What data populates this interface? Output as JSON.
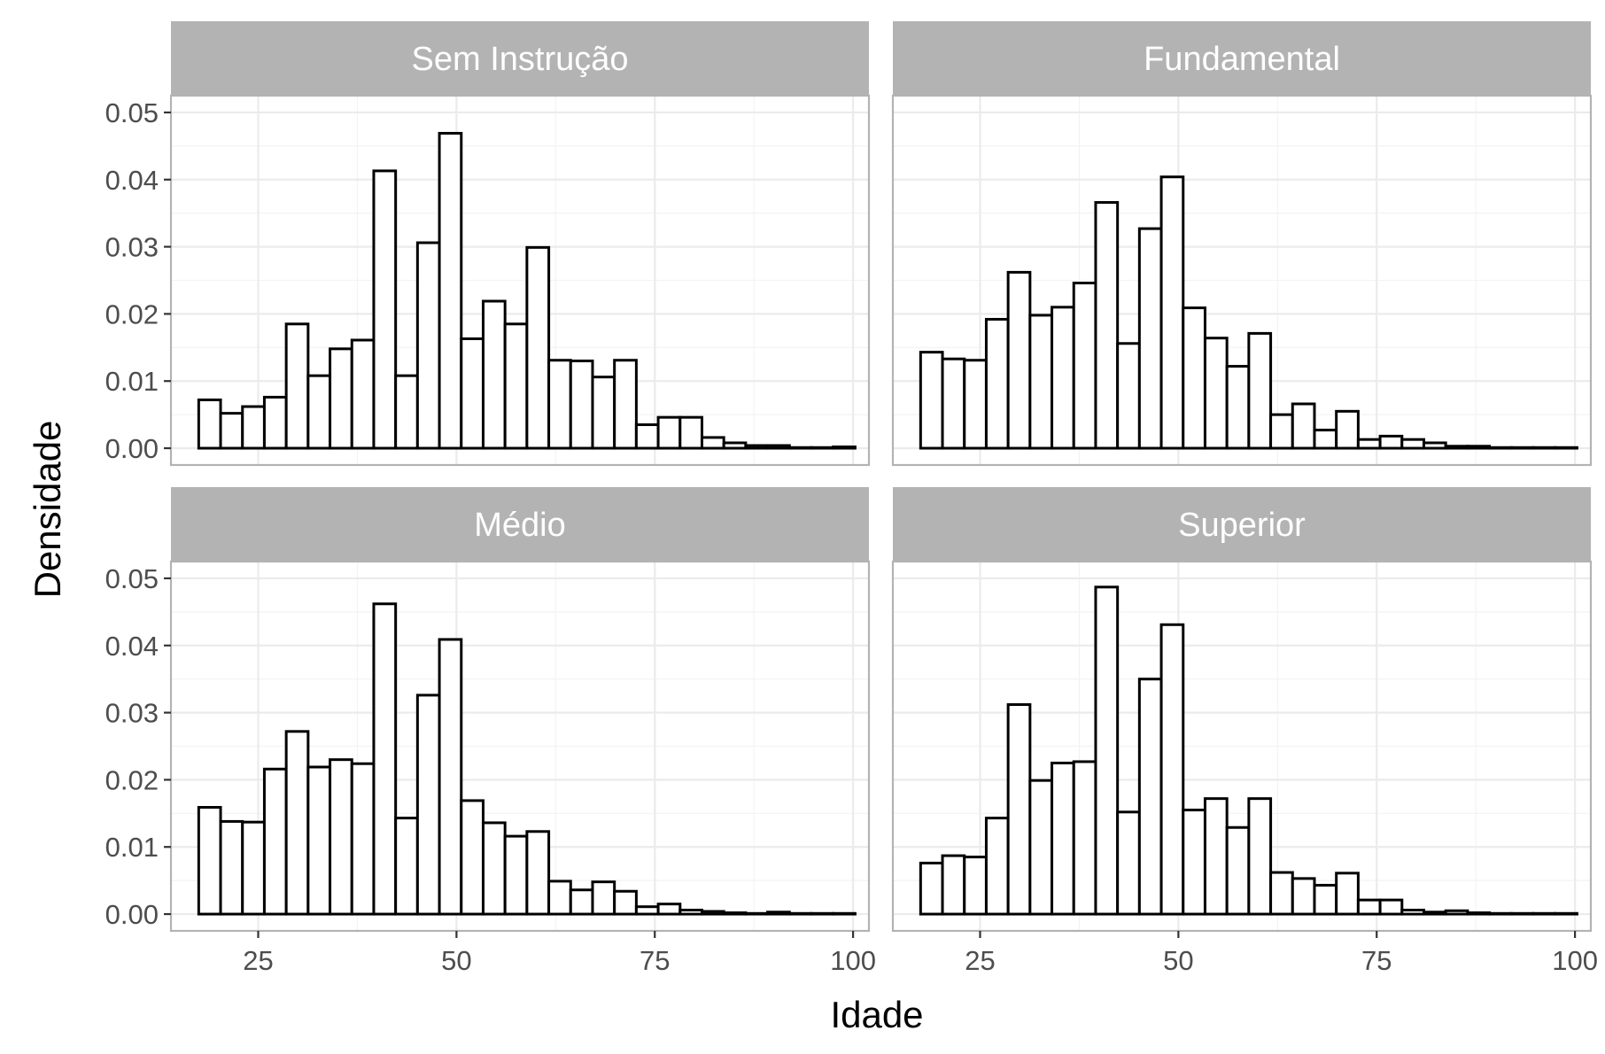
{
  "chart_data": {
    "type": "bar",
    "xlabel": "Idade",
    "ylabel": "Densidade",
    "xlim": [
      14,
      102
    ],
    "ylim": [
      -0.0025,
      0.0525
    ],
    "x_ticks": [
      "25",
      "50",
      "75",
      "100"
    ],
    "y_ticks": [
      "0.00",
      "0.01",
      "0.02",
      "0.03",
      "0.04",
      "0.05"
    ],
    "grid": true,
    "colors": {
      "bar_fill": "#ffffff",
      "bar_outline": "#000000",
      "strip": "#b3b3b3",
      "grid": "#ebebeb",
      "panel_border": "#b3b3b3"
    },
    "bins": {
      "start": 17.5,
      "width": 2.7586,
      "count": 30
    },
    "panels": [
      {
        "name": "Sem Instrução",
        "values": [
          0.0072,
          0.0052,
          0.0062,
          0.0076,
          0.0185,
          0.0108,
          0.0148,
          0.0161,
          0.0413,
          0.0108,
          0.0306,
          0.0469,
          0.0163,
          0.0219,
          0.0185,
          0.0299,
          0.0131,
          0.013,
          0.0106,
          0.0131,
          0.0035,
          0.0046,
          0.0046,
          0.0016,
          0.0008,
          0.0004,
          0.0004,
          0.0001,
          0.0001,
          0.0002
        ]
      },
      {
        "name": "Fundamental",
        "values": [
          0.0143,
          0.0133,
          0.0131,
          0.0192,
          0.0262,
          0.0198,
          0.021,
          0.0246,
          0.0366,
          0.0156,
          0.0327,
          0.0404,
          0.0209,
          0.0164,
          0.0122,
          0.0171,
          0.005,
          0.0066,
          0.0027,
          0.0055,
          0.0013,
          0.0018,
          0.0013,
          0.0008,
          0.0003,
          0.0003,
          0.0001,
          0.0001,
          0.0001,
          0.0001
        ]
      },
      {
        "name": "Médio",
        "values": [
          0.0159,
          0.0138,
          0.0137,
          0.0216,
          0.0272,
          0.0219,
          0.023,
          0.0224,
          0.0462,
          0.0143,
          0.0326,
          0.0409,
          0.0169,
          0.0136,
          0.0116,
          0.0123,
          0.0049,
          0.0036,
          0.0048,
          0.0034,
          0.0011,
          0.0015,
          0.0006,
          0.0004,
          0.0002,
          0.0001,
          0.0003,
          0.0001,
          0.0001,
          0.0001
        ]
      },
      {
        "name": "Superior",
        "values": [
          0.0076,
          0.0087,
          0.0085,
          0.0143,
          0.0312,
          0.0199,
          0.0225,
          0.0227,
          0.0487,
          0.0152,
          0.035,
          0.0431,
          0.0155,
          0.0172,
          0.0129,
          0.0172,
          0.0062,
          0.0053,
          0.0043,
          0.0061,
          0.0021,
          0.0021,
          0.0006,
          0.0003,
          0.0005,
          0.0002,
          0.0001,
          0.0001,
          0.0001,
          0.0001
        ]
      }
    ]
  }
}
